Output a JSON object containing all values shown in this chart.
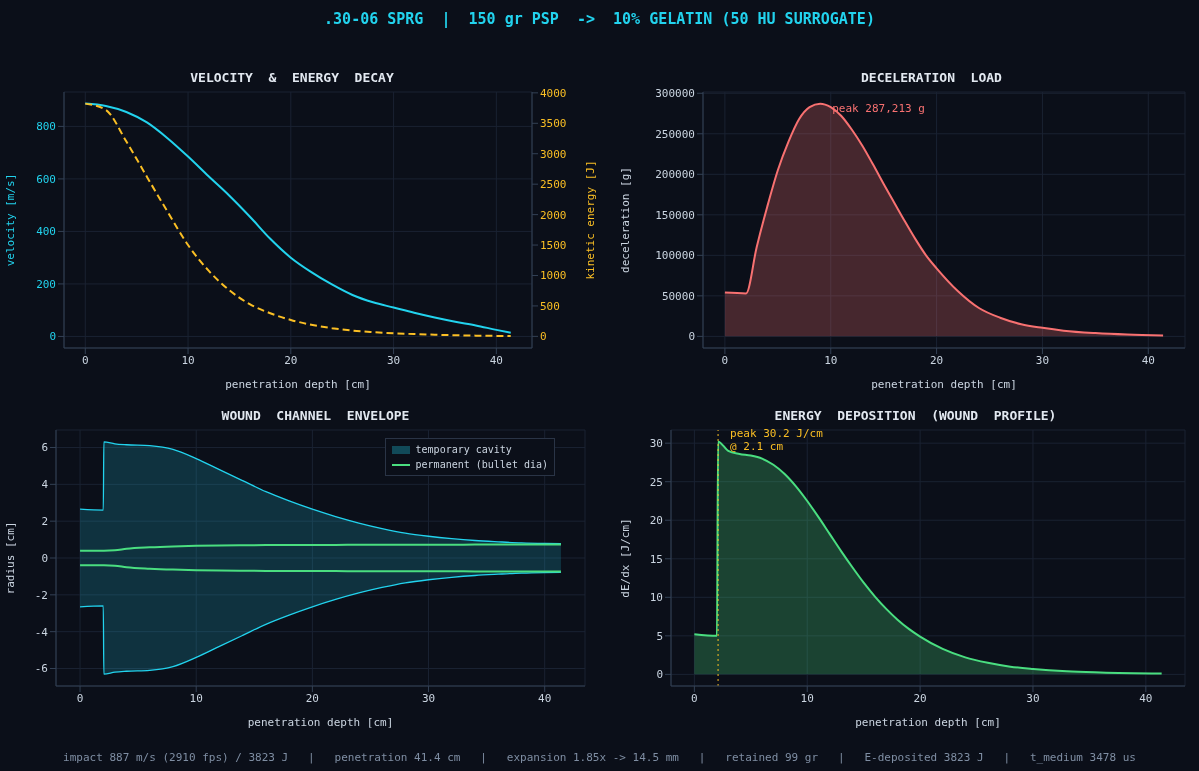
{
  "chart_data": [
    {
      "type": "other",
      "title": ".30-06 SPRG  |  150 gr PSP  ->  10% GELATIN (50 HU SURROGATE)",
      "annotations": [
        "impact 887 m/s (2910 fps) / 3823 J   |   penetration 41.4 cm   |   expansion 1.85x -> 14.5 mm   |   retained 99 gr   |   E-deposited 3823 J   |   t_medium 3478 us"
      ]
    },
    {
      "type": "line",
      "title": "VELOCITY  &  ENERGY  DECAY",
      "xlabel": "penetration depth [cm]",
      "ylabel": "velocity [m/s]",
      "y2label": "kinetic energy [J]",
      "x": [
        0,
        2,
        4,
        6,
        8,
        10,
        12,
        14,
        16,
        18,
        20,
        22,
        24,
        26,
        28,
        30,
        32,
        34,
        36,
        38,
        40,
        41.4
      ],
      "series": [
        {
          "color": "#22d3ee",
          "line_style": "solid",
          "values": [
            887,
            878,
            855,
            815,
            755,
            685,
            610,
            537,
            457,
            372,
            300,
            245,
            198,
            158,
            130,
            110,
            90,
            72,
            56,
            42,
            25,
            14
          ]
        },
        {
          "color": "#fbbf24",
          "line_style": "dashed",
          "axis": "y2",
          "values": [
            3823,
            3720,
            3200,
            2620,
            2050,
            1500,
            1080,
            760,
            530,
            380,
            270,
            190,
            135,
            95,
            70,
            50,
            38,
            27,
            18,
            12,
            8,
            5
          ]
        }
      ],
      "xlim": [
        -2.07,
        43.47
      ],
      "xticks": [
        0,
        10,
        20,
        30,
        40
      ],
      "ylim": [
        -44,
        931
      ],
      "yticks": [
        0,
        200,
        400,
        600,
        800
      ],
      "y2lim": [
        -191,
        4014
      ],
      "y2ticks": [
        0,
        500,
        1000,
        1500,
        2000,
        2500,
        3000,
        3500,
        4000
      ],
      "grid": true,
      "legend": false,
      "marker": "none"
    },
    {
      "type": "area",
      "title": "DECELERATION  LOAD",
      "xlabel": "penetration depth [cm]",
      "ylabel": "deceleration [g]",
      "x": [
        0,
        2,
        3,
        4,
        5,
        6,
        7,
        8,
        9,
        10,
        11,
        12,
        13,
        14,
        15,
        16,
        17,
        18,
        19,
        20,
        22,
        24,
        26,
        28,
        30,
        32,
        35,
        38,
        41.4
      ],
      "series": [
        {
          "color": "#f87171",
          "values": [
            54000,
            53000,
            110000,
            160000,
            205000,
            240000,
            268000,
            283000,
            287213,
            283000,
            272000,
            255000,
            235000,
            212000,
            188000,
            165000,
            142000,
            120000,
            100000,
            84000,
            56000,
            35000,
            23000,
            15000,
            10500,
            7000,
            4000,
            2200,
            1200
          ]
        }
      ],
      "annotations": [
        {
          "text": "peak 287,213 g",
          "x": 9,
          "y": 287213
        }
      ],
      "xlim": [
        -2.07,
        43.47
      ],
      "xticks": [
        0,
        10,
        20,
        30,
        40
      ],
      "ylim": [
        -14361,
        301574
      ],
      "yticks": [
        0,
        50000,
        100000,
        150000,
        200000,
        250000,
        300000
      ],
      "grid": true,
      "legend": false,
      "marker": "none"
    },
    {
      "type": "line",
      "title": "WOUND  CHANNEL  ENVELOPE",
      "xlabel": "penetration depth [cm]",
      "ylabel": "radius [cm]",
      "x": [
        0,
        2,
        2.05,
        3,
        4,
        6,
        8,
        10,
        12,
        14,
        16,
        18,
        20,
        22,
        24,
        26,
        28,
        30,
        32,
        34,
        36,
        38,
        40,
        41.4
      ],
      "series": [
        {
          "type": "area",
          "name": "temporary cavity",
          "color": "#22d3ee",
          "values": [
            2.65,
            2.6,
            6.3,
            6.2,
            6.15,
            6.1,
            5.9,
            5.4,
            4.8,
            4.2,
            3.6,
            3.1,
            2.65,
            2.25,
            1.9,
            1.6,
            1.35,
            1.18,
            1.05,
            0.95,
            0.88,
            0.82,
            0.79,
            0.78
          ]
        },
        {
          "type": "area",
          "color": "#22d3ee",
          "values": [
            -2.65,
            -2.6,
            -6.3,
            -6.2,
            -6.15,
            -6.1,
            -5.9,
            -5.4,
            -4.8,
            -4.2,
            -3.6,
            -3.1,
            -2.65,
            -2.25,
            -1.9,
            -1.6,
            -1.35,
            -1.18,
            -1.05,
            -0.95,
            -0.88,
            -0.82,
            -0.79,
            -0.78
          ]
        },
        {
          "type": "line",
          "name": "permanent (bullet dia)",
          "color": "#4ade80",
          "values": [
            0.4,
            0.4,
            0.4,
            0.42,
            0.5,
            0.58,
            0.63,
            0.66,
            0.68,
            0.69,
            0.7,
            0.7,
            0.71,
            0.71,
            0.72,
            0.72,
            0.72,
            0.72,
            0.72,
            0.73,
            0.73,
            0.73,
            0.73,
            0.73
          ]
        },
        {
          "type": "line",
          "color": "#4ade80",
          "values": [
            -0.4,
            -0.4,
            -0.4,
            -0.42,
            -0.5,
            -0.58,
            -0.63,
            -0.66,
            -0.68,
            -0.69,
            -0.7,
            -0.7,
            -0.71,
            -0.71,
            -0.72,
            -0.72,
            -0.72,
            -0.72,
            -0.72,
            -0.73,
            -0.73,
            -0.73,
            -0.73,
            -0.73
          ]
        }
      ],
      "xlim": [
        -2.07,
        43.47
      ],
      "xticks": [
        0,
        10,
        20,
        30,
        40
      ],
      "ylim": [
        -6.95,
        6.95
      ],
      "yticks": [
        -6,
        -4,
        -2,
        0,
        2,
        4,
        6
      ],
      "grid": true,
      "legend": "top right",
      "marker": "none"
    },
    {
      "type": "area",
      "title": "ENERGY  DEPOSITION  (WOUND  PROFILE)",
      "xlabel": "penetration depth [cm]",
      "ylabel": "dE/dx  [J/cm]",
      "x": [
        0,
        2,
        2.1,
        3,
        4,
        5,
        6,
        7,
        8,
        9,
        10,
        11,
        12,
        13,
        14,
        15,
        16,
        17,
        18,
        19,
        20,
        22,
        24,
        26,
        28,
        30,
        33,
        36,
        41.4
      ],
      "series": [
        {
          "color": "#4ade80",
          "values": [
            5.2,
            5.0,
            30.2,
            29.0,
            28.6,
            28.4,
            28.0,
            27.2,
            26.0,
            24.4,
            22.5,
            20.4,
            18.2,
            16.0,
            13.9,
            11.9,
            10.1,
            8.5,
            7.1,
            5.9,
            4.9,
            3.3,
            2.2,
            1.5,
            1.0,
            0.7,
            0.4,
            0.25,
            0.1
          ]
        }
      ],
      "ref_lines": [
        {
          "axis": "x",
          "value": 2.1,
          "color": "#fbbf24",
          "line_style": "dotted"
        }
      ],
      "annotations": [
        {
          "text": "peak 30.2 J/cm\n@ 2.1 cm",
          "x": 2.1,
          "y": 30.2
        }
      ],
      "xlim": [
        -2.07,
        43.47
      ],
      "xticks": [
        0,
        10,
        20,
        30,
        40
      ],
      "ylim": [
        -1.51,
        31.71
      ],
      "yticks": [
        0,
        5,
        10,
        15,
        20,
        25,
        30
      ],
      "grid": true,
      "legend": false,
      "marker": "none"
    }
  ]
}
